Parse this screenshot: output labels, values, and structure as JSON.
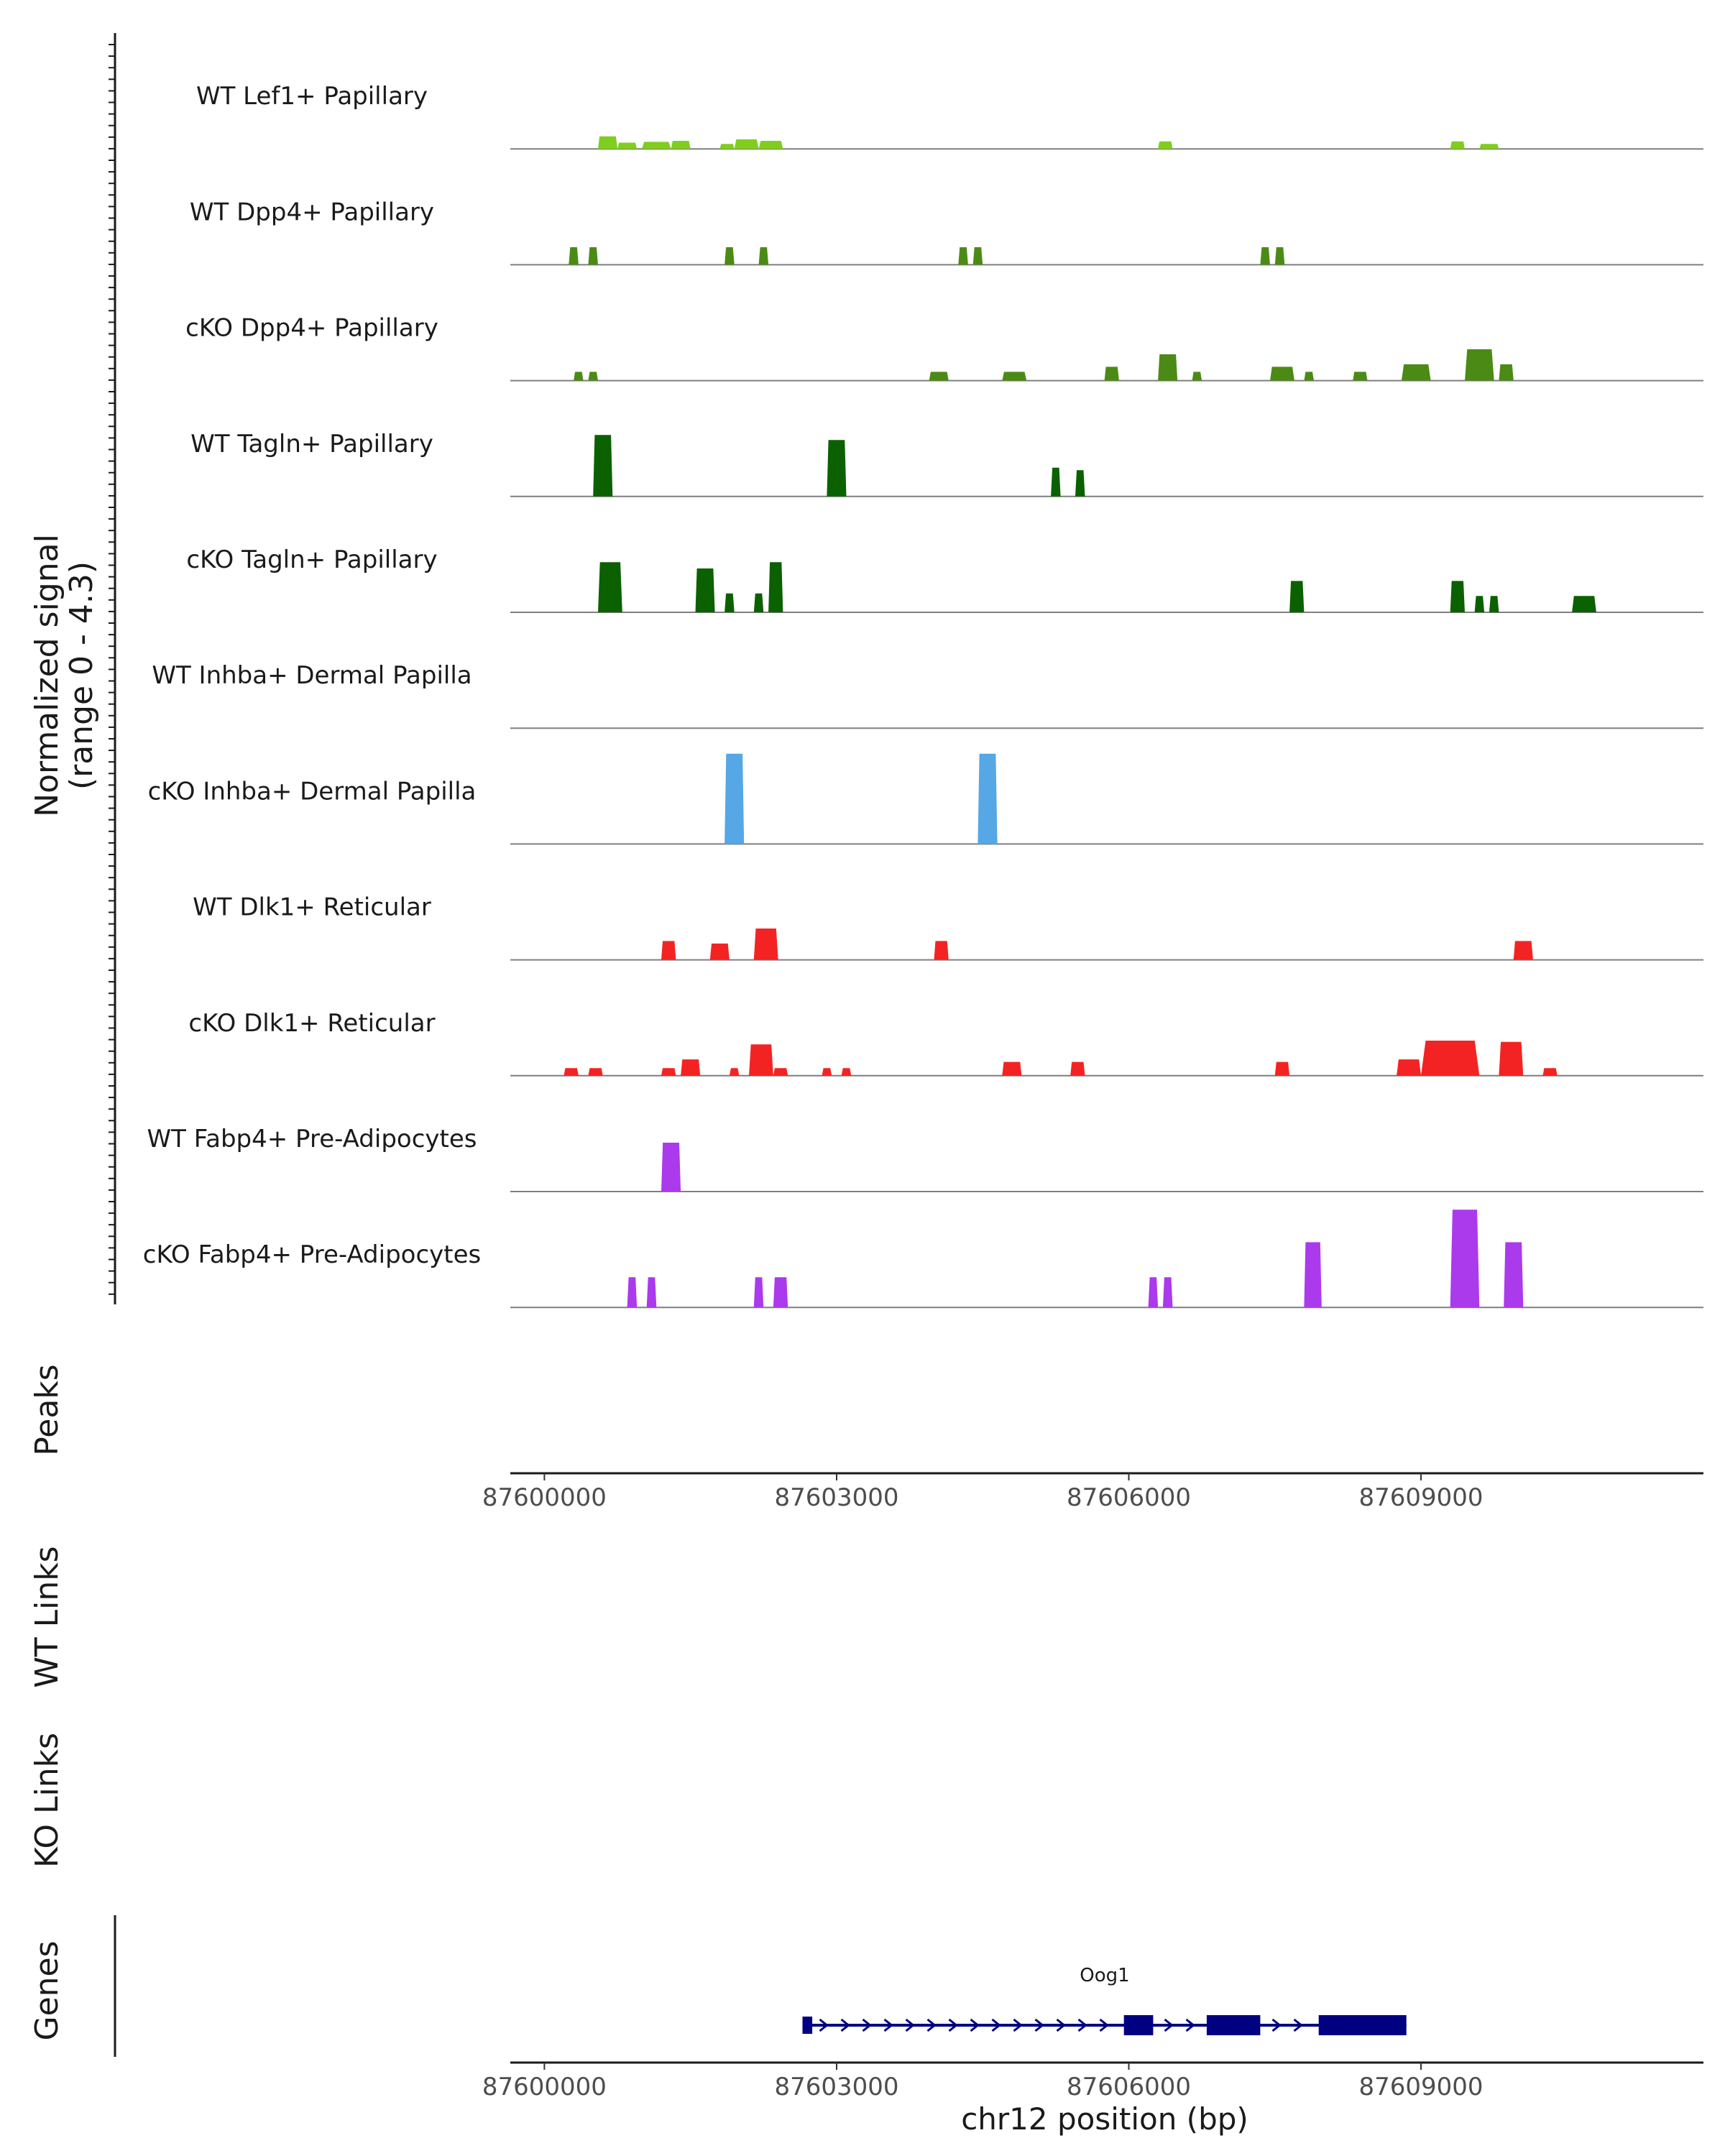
{
  "chart_data": {
    "type": "area",
    "title": "",
    "chromosome": "chr12",
    "xlim": [
      87599650,
      87611900
    ],
    "ylim": [
      0,
      4.3
    ],
    "ylabel_line1": "Normalized signal",
    "ylabel_line2": "(range 0 - 4.3)",
    "xlabel": "chr12 position (bp)",
    "x_ticks": [
      87600000,
      87603000,
      87606000,
      87609000
    ],
    "x_tick_labels": [
      "87600000",
      "87603000",
      "87606000",
      "87609000"
    ],
    "side_labels": {
      "peaks": "Peaks",
      "wt_links": "WT Links",
      "ko_links": "KO Links",
      "genes": "Genes"
    },
    "tracks": [
      {
        "name": "WT Lef1+ Papillary",
        "color": "#7fce1e",
        "peaks": [
          [
            87600550,
            87600750,
            0.5
          ],
          [
            87600750,
            87600950,
            0.25
          ],
          [
            87601000,
            87601300,
            0.28
          ],
          [
            87601300,
            87601500,
            0.32
          ],
          [
            87601800,
            87601950,
            0.2
          ],
          [
            87601950,
            87602200,
            0.38
          ],
          [
            87602200,
            87602450,
            0.32
          ],
          [
            87606300,
            87606450,
            0.3
          ],
          [
            87609300,
            87609450,
            0.3
          ],
          [
            87609600,
            87609800,
            0.2
          ]
        ]
      },
      {
        "name": "WT Dpp4+ Papillary",
        "color": "#4b8b15",
        "peaks": [
          [
            87600250,
            87600350,
            0.7
          ],
          [
            87600450,
            87600550,
            0.7
          ],
          [
            87601850,
            87601950,
            0.7
          ],
          [
            87602200,
            87602300,
            0.7
          ],
          [
            87604250,
            87604350,
            0.7
          ],
          [
            87604400,
            87604500,
            0.7
          ],
          [
            87607350,
            87607450,
            0.7
          ],
          [
            87607500,
            87607600,
            0.7
          ]
        ]
      },
      {
        "name": "cKO Dpp4+ Papillary",
        "color": "#4b8b15",
        "peaks": [
          [
            87600300,
            87600400,
            0.35
          ],
          [
            87600450,
            87600550,
            0.35
          ],
          [
            87603950,
            87604150,
            0.35
          ],
          [
            87604700,
            87604950,
            0.35
          ],
          [
            87605750,
            87605900,
            0.55
          ],
          [
            87606300,
            87606500,
            1.05
          ],
          [
            87606650,
            87606750,
            0.35
          ],
          [
            87607450,
            87607700,
            0.55
          ],
          [
            87607800,
            87607900,
            0.35
          ],
          [
            87608300,
            87608450,
            0.35
          ],
          [
            87608800,
            87609100,
            0.65
          ],
          [
            87609450,
            87609750,
            1.25
          ],
          [
            87609800,
            87609950,
            0.65
          ]
        ]
      },
      {
        "name": "WT Tagln+ Papillary",
        "color": "#0b6100",
        "peaks": [
          [
            87600500,
            87600700,
            2.45
          ],
          [
            87602900,
            87603100,
            2.25
          ],
          [
            87605200,
            87605300,
            1.15
          ],
          [
            87605450,
            87605550,
            1.05
          ]
        ]
      },
      {
        "name": "cKO Tagln+ Papillary",
        "color": "#0b6100",
        "peaks": [
          [
            87600550,
            87600800,
            2.0
          ],
          [
            87601550,
            87601750,
            1.75
          ],
          [
            87601850,
            87601950,
            0.75
          ],
          [
            87602150,
            87602250,
            0.75
          ],
          [
            87602300,
            87602450,
            2.0
          ],
          [
            87607650,
            87607800,
            1.25
          ],
          [
            87609300,
            87609450,
            1.25
          ],
          [
            87609550,
            87609650,
            0.65
          ],
          [
            87609700,
            87609800,
            0.65
          ],
          [
            87610550,
            87610800,
            0.65
          ]
        ]
      },
      {
        "name": "WT Inhba+ Dermal Papilla",
        "color": "#56a7e6",
        "peaks": []
      },
      {
        "name": "cKO Inhba+ Dermal Papilla",
        "color": "#56a7e6",
        "peaks": [
          [
            87601850,
            87602050,
            3.6
          ],
          [
            87604450,
            87604650,
            3.6
          ]
        ]
      },
      {
        "name": "WT Dlk1+ Reticular",
        "color": "#f42323",
        "peaks": [
          [
            87601200,
            87601350,
            0.75
          ],
          [
            87601700,
            87601900,
            0.65
          ],
          [
            87602150,
            87602400,
            1.25
          ],
          [
            87604000,
            87604150,
            0.75
          ],
          [
            87609950,
            87610150,
            0.75
          ]
        ]
      },
      {
        "name": "cKO Dlk1+ Reticular",
        "color": "#f42323",
        "peaks": [
          [
            87600200,
            87600350,
            0.3
          ],
          [
            87600450,
            87600600,
            0.3
          ],
          [
            87601200,
            87601350,
            0.3
          ],
          [
            87601400,
            87601600,
            0.65
          ],
          [
            87601900,
            87602000,
            0.3
          ],
          [
            87602100,
            87602350,
            1.25
          ],
          [
            87602350,
            87602500,
            0.3
          ],
          [
            87602850,
            87602950,
            0.3
          ],
          [
            87603050,
            87603150,
            0.3
          ],
          [
            87604700,
            87604900,
            0.55
          ],
          [
            87605400,
            87605550,
            0.55
          ],
          [
            87607500,
            87607650,
            0.55
          ],
          [
            87608750,
            87609000,
            0.65
          ],
          [
            87609000,
            87609600,
            1.4
          ],
          [
            87609800,
            87610050,
            1.35
          ],
          [
            87610250,
            87610400,
            0.3
          ]
        ]
      },
      {
        "name": "WT Fabp4+ Pre-Adipocytes",
        "color": "#ab3aec",
        "peaks": [
          [
            87601200,
            87601400,
            1.95
          ]
        ]
      },
      {
        "name": "cKO Fabp4+ Pre-Adipocytes",
        "color": "#ab3aec",
        "peaks": [
          [
            87600850,
            87600950,
            1.2
          ],
          [
            87601050,
            87601150,
            1.2
          ],
          [
            87602150,
            87602250,
            1.2
          ],
          [
            87602350,
            87602500,
            1.2
          ],
          [
            87606200,
            87606300,
            1.2
          ],
          [
            87606350,
            87606450,
            1.2
          ],
          [
            87607800,
            87607980,
            2.6
          ],
          [
            87609300,
            87609600,
            3.9
          ],
          [
            87609850,
            87610050,
            2.6
          ]
        ]
      }
    ],
    "gene": {
      "name": "Oog1",
      "color": "#000080",
      "strand": "+",
      "start": 87602650,
      "end": 87608850,
      "exons": [
        [
          87602650,
          87602750
        ],
        [
          87605950,
          87606250
        ],
        [
          87606800,
          87607350
        ],
        [
          87607950,
          87608850
        ]
      ]
    }
  }
}
